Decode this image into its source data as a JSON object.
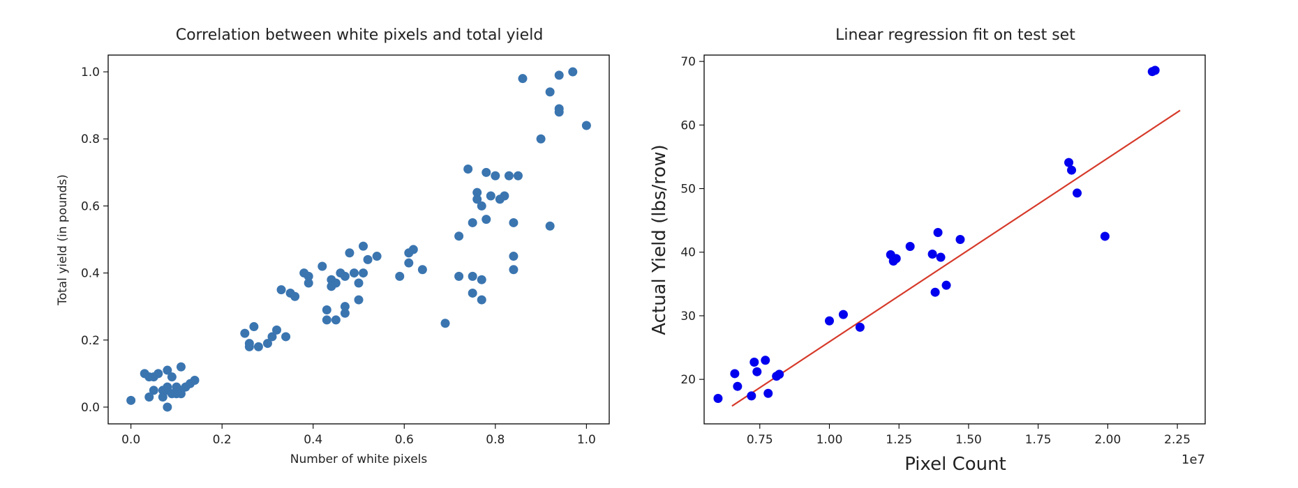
{
  "chart_data": [
    {
      "type": "scatter",
      "title": "Correlation between white pixels and total yield",
      "xlabel": "Number of white pixels",
      "ylabel": "Total yield (in pounds)",
      "xlim": [
        -0.05,
        1.05
      ],
      "ylim": [
        -0.05,
        1.05
      ],
      "xticks": [
        "0.0",
        "0.2",
        "0.4",
        "0.6",
        "0.8",
        "1.0"
      ],
      "yticks": [
        "0.0",
        "0.2",
        "0.4",
        "0.6",
        "0.8",
        "1.0"
      ],
      "grid": false,
      "colors": {
        "points": "#3a75b0"
      },
      "series": [
        {
          "x": [
            0.0,
            0.03,
            0.04,
            0.05,
            0.05,
            0.06,
            0.07,
            0.07,
            0.08,
            0.08,
            0.08,
            0.09,
            0.09,
            0.1,
            0.1,
            0.1,
            0.11,
            0.11,
            0.11,
            0.12,
            0.13,
            0.14,
            0.04,
            0.08,
            0.25,
            0.26,
            0.26,
            0.27,
            0.28,
            0.3,
            0.31,
            0.32,
            0.33,
            0.34,
            0.35,
            0.36,
            0.38,
            0.39,
            0.39,
            0.42,
            0.43,
            0.43,
            0.44,
            0.44,
            0.45,
            0.45,
            0.46,
            0.47,
            0.47,
            0.47,
            0.48,
            0.49,
            0.5,
            0.5,
            0.51,
            0.51,
            0.52,
            0.54,
            0.59,
            0.61,
            0.61,
            0.62,
            0.64,
            0.69,
            0.72,
            0.72,
            0.74,
            0.75,
            0.75,
            0.75,
            0.76,
            0.76,
            0.77,
            0.77,
            0.77,
            0.78,
            0.78,
            0.79,
            0.8,
            0.81,
            0.82,
            0.83,
            0.84,
            0.84,
            0.84,
            0.85,
            0.86,
            0.9,
            0.92,
            0.92,
            0.94,
            0.94,
            0.94,
            0.97,
            1.0
          ],
          "y": [
            0.02,
            0.1,
            0.09,
            0.05,
            0.09,
            0.1,
            0.05,
            0.03,
            0.11,
            0.06,
            0.05,
            0.09,
            0.04,
            0.06,
            0.04,
            0.05,
            0.05,
            0.12,
            0.04,
            0.06,
            0.07,
            0.08,
            0.03,
            0.0,
            0.22,
            0.19,
            0.18,
            0.24,
            0.18,
            0.19,
            0.21,
            0.23,
            0.35,
            0.21,
            0.34,
            0.33,
            0.4,
            0.37,
            0.39,
            0.42,
            0.26,
            0.29,
            0.36,
            0.38,
            0.37,
            0.26,
            0.4,
            0.39,
            0.3,
            0.28,
            0.46,
            0.4,
            0.32,
            0.37,
            0.48,
            0.4,
            0.44,
            0.45,
            0.39,
            0.46,
            0.43,
            0.47,
            0.41,
            0.25,
            0.51,
            0.39,
            0.71,
            0.55,
            0.34,
            0.39,
            0.64,
            0.62,
            0.6,
            0.38,
            0.32,
            0.7,
            0.56,
            0.63,
            0.69,
            0.62,
            0.63,
            0.69,
            0.55,
            0.45,
            0.41,
            0.69,
            0.98,
            0.8,
            0.94,
            0.54,
            0.88,
            0.89,
            0.99,
            1.0,
            0.84
          ]
        }
      ]
    },
    {
      "type": "scatter",
      "title": "Linear regression fit on test set",
      "xlabel": "Pixel Count",
      "ylabel": "Actual Yield (lbs/row)",
      "offset_text": "1e7",
      "xlim": [
        0.55,
        2.35
      ],
      "ylim": [
        13,
        71
      ],
      "xticks": [
        "0.75",
        "1.00",
        "1.25",
        "1.50",
        "1.75",
        "2.00",
        "2.25"
      ],
      "yticks": [
        "20",
        "30",
        "40",
        "50",
        "60",
        "70"
      ],
      "grid": false,
      "colors": {
        "points": "#0000ee",
        "fit_line": "#d63a2a"
      },
      "series": [
        {
          "x": [
            0.6,
            0.66,
            0.67,
            0.72,
            0.73,
            0.74,
            0.77,
            0.78,
            0.81,
            0.82,
            1.0,
            1.05,
            1.11,
            1.22,
            1.23,
            1.24,
            1.29,
            1.37,
            1.38,
            1.39,
            1.4,
            1.42,
            1.47,
            1.86,
            1.87,
            1.89,
            1.99,
            2.16,
            2.17
          ],
          "y": [
            17.0,
            20.9,
            18.9,
            17.4,
            22.7,
            21.2,
            23.0,
            17.8,
            20.5,
            20.8,
            29.2,
            30.2,
            28.2,
            39.6,
            38.6,
            39.0,
            40.9,
            39.7,
            33.7,
            43.1,
            39.2,
            34.8,
            42.0,
            54.1,
            52.9,
            49.3,
            42.5,
            68.4,
            68.6
          ]
        }
      ],
      "fit_line": {
        "x": [
          0.65,
          2.26
        ],
        "y": [
          15.8,
          62.3
        ]
      }
    }
  ]
}
